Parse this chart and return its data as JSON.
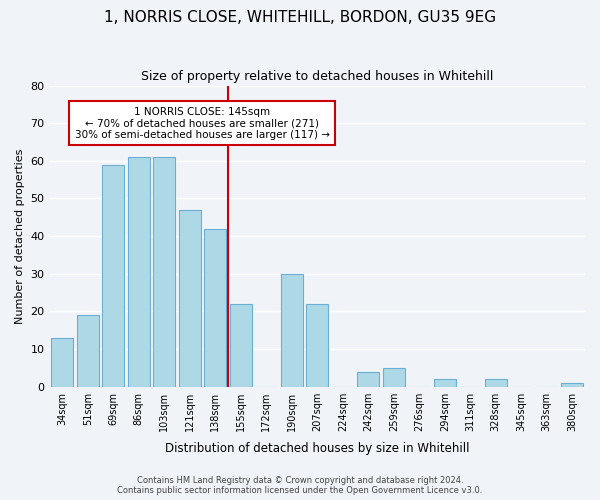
{
  "title": "1, NORRIS CLOSE, WHITEHILL, BORDON, GU35 9EG",
  "subtitle": "Size of property relative to detached houses in Whitehill",
  "xlabel": "Distribution of detached houses by size in Whitehill",
  "ylabel": "Number of detached properties",
  "bar_labels": [
    "34sqm",
    "51sqm",
    "69sqm",
    "86sqm",
    "103sqm",
    "121sqm",
    "138sqm",
    "155sqm",
    "172sqm",
    "190sqm",
    "207sqm",
    "224sqm",
    "242sqm",
    "259sqm",
    "276sqm",
    "294sqm",
    "311sqm",
    "328sqm",
    "345sqm",
    "363sqm",
    "380sqm"
  ],
  "bar_values": [
    13,
    19,
    59,
    61,
    61,
    47,
    42,
    22,
    0,
    30,
    22,
    0,
    4,
    5,
    0,
    2,
    0,
    2,
    0,
    0,
    1
  ],
  "bar_color": "#add8e6",
  "bar_edge_color": "#6baed6",
  "ylim": [
    0,
    80
  ],
  "yticks": [
    0,
    10,
    20,
    30,
    40,
    50,
    60,
    70,
    80
  ],
  "property_line_x": 6.5,
  "property_line_color": "#cc0000",
  "annotation_title": "1 NORRIS CLOSE: 145sqm",
  "annotation_line1": "← 70% of detached houses are smaller (271)",
  "annotation_line2": "30% of semi-detached houses are larger (117) →",
  "annotation_box_color": "#ffffff",
  "annotation_box_edge_color": "#cc0000",
  "footer_line1": "Contains HM Land Registry data © Crown copyright and database right 2024.",
  "footer_line2": "Contains public sector information licensed under the Open Government Licence v3.0.",
  "background_color": "#f0f4f8"
}
